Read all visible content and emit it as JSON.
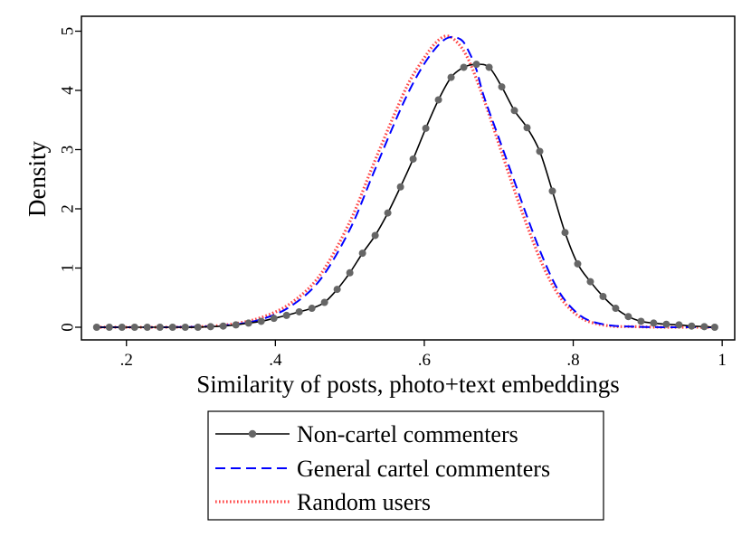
{
  "chart_data": {
    "type": "line",
    "title": "",
    "xlabel": "Similarity of posts, photo+text embeddings",
    "ylabel": "Density",
    "xlim": [
      0.155,
      1.0
    ],
    "ylim": [
      0,
      5
    ],
    "x_ticks": [
      0.2,
      0.4,
      0.6,
      0.8,
      1.0
    ],
    "x_tick_labels": [
      ".2",
      ".4",
      ".6",
      ".8",
      "1"
    ],
    "y_ticks": [
      0,
      1,
      2,
      3,
      4,
      5
    ],
    "y_tick_labels": [
      "0",
      "1",
      "2",
      "3",
      "4",
      "5"
    ],
    "grid": false,
    "legend_position": "bottom",
    "series": [
      {
        "name": "Non-cartel commenters",
        "style": "solid-markers",
        "color": "#000000",
        "marker_color": "#666666",
        "x": [
          0.16,
          0.177,
          0.194,
          0.211,
          0.228,
          0.245,
          0.262,
          0.279,
          0.296,
          0.313,
          0.33,
          0.347,
          0.364,
          0.381,
          0.398,
          0.415,
          0.432,
          0.449,
          0.466,
          0.483,
          0.5,
          0.517,
          0.534,
          0.551,
          0.568,
          0.585,
          0.602,
          0.619,
          0.636,
          0.653,
          0.67,
          0.687,
          0.704,
          0.721,
          0.738,
          0.755,
          0.772,
          0.789,
          0.806,
          0.823,
          0.84,
          0.857,
          0.874,
          0.891,
          0.908,
          0.925,
          0.942,
          0.959,
          0.976,
          0.99
        ],
        "y": [
          0,
          0,
          0,
          0,
          0,
          0,
          0,
          0,
          0,
          0.01,
          0.02,
          0.04,
          0.07,
          0.1,
          0.15,
          0.2,
          0.26,
          0.32,
          0.42,
          0.64,
          0.92,
          1.25,
          1.55,
          1.93,
          2.37,
          2.84,
          3.36,
          3.84,
          4.22,
          4.39,
          4.44,
          4.39,
          4.06,
          3.66,
          3.37,
          2.97,
          2.3,
          1.6,
          1.07,
          0.77,
          0.52,
          0.32,
          0.18,
          0.1,
          0.07,
          0.05,
          0.04,
          0.02,
          0.01,
          0
        ]
      },
      {
        "name": "General cartel commenters",
        "style": "dashed",
        "color": "#0000ff",
        "x": [
          0.16,
          0.25,
          0.3,
          0.34,
          0.38,
          0.42,
          0.46,
          0.5,
          0.53,
          0.56,
          0.58,
          0.6,
          0.62,
          0.635,
          0.65,
          0.66,
          0.67,
          0.68,
          0.7,
          0.72,
          0.74,
          0.76,
          0.78,
          0.8,
          0.82,
          0.85,
          0.88,
          0.92,
          0.99
        ],
        "y": [
          0,
          0,
          0.01,
          0.04,
          0.13,
          0.35,
          0.8,
          1.65,
          2.55,
          3.45,
          4.0,
          4.45,
          4.78,
          4.9,
          4.85,
          4.65,
          4.35,
          3.9,
          3.2,
          2.5,
          1.8,
          1.15,
          0.62,
          0.3,
          0.12,
          0.03,
          0.01,
          0,
          0
        ]
      },
      {
        "name": "Random users",
        "style": "dotted",
        "color": "#ff4444",
        "x": [
          0.16,
          0.25,
          0.3,
          0.34,
          0.38,
          0.42,
          0.46,
          0.5,
          0.53,
          0.56,
          0.58,
          0.6,
          0.615,
          0.63,
          0.645,
          0.66,
          0.68,
          0.7,
          0.72,
          0.74,
          0.76,
          0.78,
          0.8,
          0.82,
          0.85,
          0.88,
          0.92,
          0.99
        ],
        "y": [
          0,
          0,
          0.01,
          0.05,
          0.16,
          0.4,
          0.88,
          1.78,
          2.7,
          3.6,
          4.15,
          4.55,
          4.8,
          4.92,
          4.8,
          4.5,
          3.85,
          3.1,
          2.35,
          1.65,
          1.02,
          0.55,
          0.26,
          0.1,
          0.02,
          0.01,
          0,
          0
        ]
      }
    ]
  }
}
